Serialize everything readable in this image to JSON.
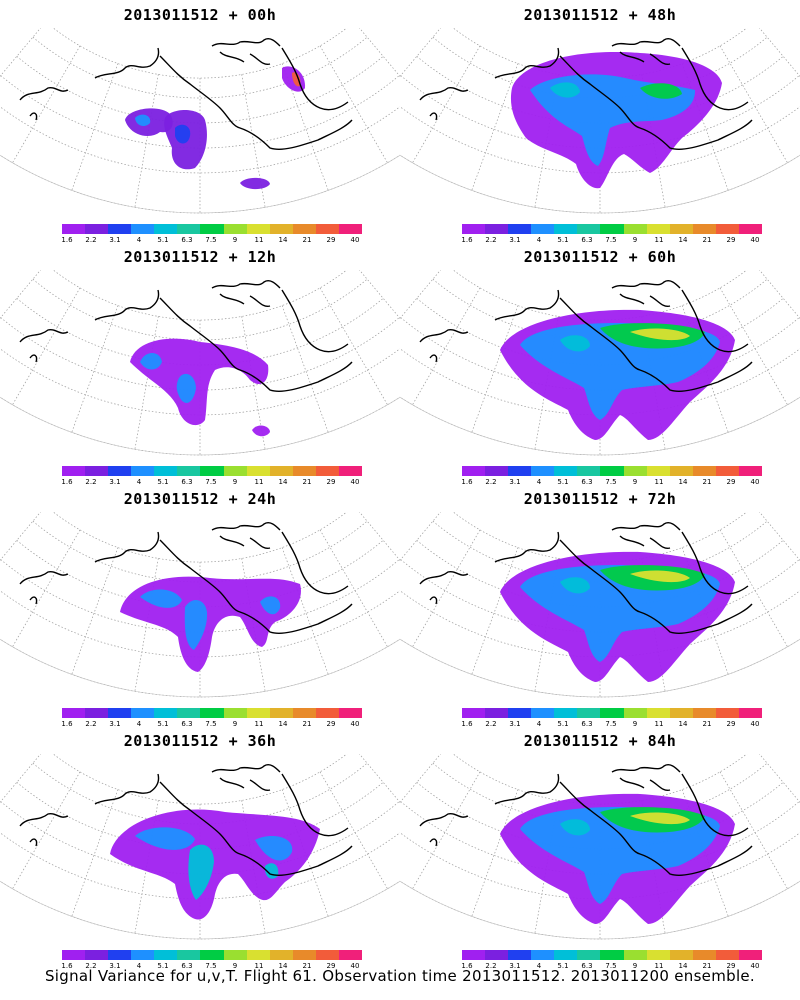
{
  "panels": [
    {
      "title": "2013011512 + 00h",
      "lead": "00h",
      "spread": 0
    },
    {
      "title": "2013011512 + 48h",
      "lead": "48h",
      "spread": 4
    },
    {
      "title": "2013011512 + 12h",
      "lead": "12h",
      "spread": 1
    },
    {
      "title": "2013011512 + 60h",
      "lead": "60h",
      "spread": 5
    },
    {
      "title": "2013011512 + 24h",
      "lead": "24h",
      "spread": 2
    },
    {
      "title": "2013011512 + 72h",
      "lead": "72h",
      "spread": 6
    },
    {
      "title": "2013011512 + 36h",
      "lead": "36h",
      "spread": 3
    },
    {
      "title": "2013011512 + 84h",
      "lead": "84h",
      "spread": 7
    }
  ],
  "colorbar": {
    "labels": [
      "1.6",
      "2.2",
      "3.1",
      "4",
      "5.1",
      "6.3",
      "7.5",
      "9",
      "11",
      "14",
      "21",
      "29",
      "40"
    ],
    "colors": [
      "#a020f0",
      "#7b20e0",
      "#2040f0",
      "#1e90ff",
      "#00bfd8",
      "#19c7a0",
      "#00cc44",
      "#9adf30",
      "#d9e030",
      "#e2b22a",
      "#e88a2a",
      "#f25c3a",
      "#f0207a"
    ]
  },
  "footer": "Signal Variance for u,v,T. Flight 61. Observation time 2013011512. 2013011200 ensemble."
}
